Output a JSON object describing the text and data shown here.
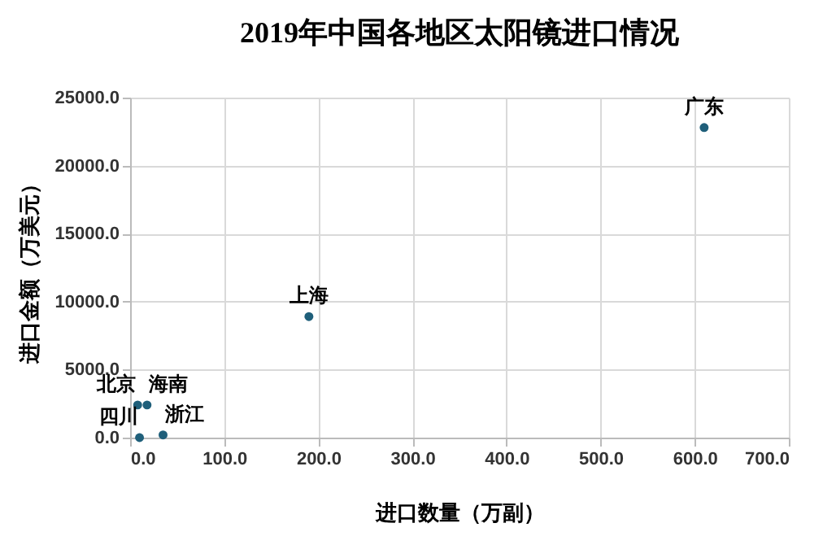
{
  "chart_data": {
    "type": "scatter",
    "title": "2019年中国各地区太阳镜进口情况",
    "xlabel": "进口数量（万副）",
    "ylabel": "进口金额（万美元）",
    "series": [
      {
        "color": "#1f5f7a",
        "x": [
          610,
          190,
          8,
          18,
          10,
          35
        ],
        "values": [
          22800,
          8900,
          2400,
          2400,
          0,
          200
        ]
      }
    ],
    "annotations": [
      {
        "text": "广东",
        "x": 610,
        "y": 22800
      },
      {
        "text": "上海",
        "x": 190,
        "y": 8900
      },
      {
        "text": "北京",
        "x": 8,
        "y": 2400
      },
      {
        "text": "海南",
        "x": 18,
        "y": 2400
      },
      {
        "text": "四川",
        "x": 10,
        "y": 0
      },
      {
        "text": "浙江",
        "x": 35,
        "y": 200
      }
    ],
    "xlim": [
      0,
      700
    ],
    "xticks": [
      {
        "value": 0,
        "label": "0.0"
      },
      {
        "value": 100,
        "label": "100.0"
      },
      {
        "value": 200,
        "label": "200.0"
      },
      {
        "value": 300,
        "label": "300.0"
      },
      {
        "value": 400,
        "label": "400.0"
      },
      {
        "value": 500,
        "label": "500.0"
      },
      {
        "value": 600,
        "label": "600.0"
      },
      {
        "value": 700,
        "label": "700.0"
      }
    ],
    "ylim": [
      0,
      25000
    ],
    "yticks": [
      {
        "value": 0,
        "label": "0.0"
      },
      {
        "value": 5000,
        "label": "5000.0"
      },
      {
        "value": 10000,
        "label": "10000.0"
      },
      {
        "value": 15000,
        "label": "15000.0"
      },
      {
        "value": 20000,
        "label": "20000.0"
      },
      {
        "value": 25000,
        "label": "25000.0"
      }
    ],
    "grid": true,
    "marker": "circle"
  }
}
